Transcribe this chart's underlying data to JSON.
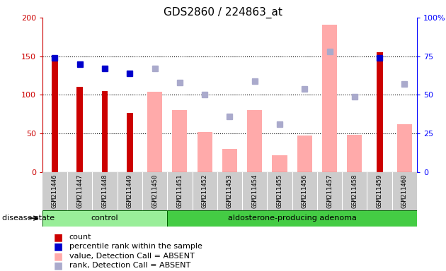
{
  "title": "GDS2860 / 224863_at",
  "samples": [
    "GSM211446",
    "GSM211447",
    "GSM211448",
    "GSM211449",
    "GSM211450",
    "GSM211451",
    "GSM211452",
    "GSM211453",
    "GSM211454",
    "GSM211455",
    "GSM211456",
    "GSM211457",
    "GSM211458",
    "GSM211459",
    "GSM211460"
  ],
  "count_values": [
    148,
    110,
    105,
    77,
    null,
    null,
    null,
    null,
    null,
    null,
    null,
    null,
    null,
    155,
    null
  ],
  "percentile_values": [
    74,
    70,
    67,
    64,
    null,
    null,
    null,
    null,
    null,
    null,
    null,
    null,
    null,
    74,
    null
  ],
  "absent_value_values": [
    null,
    null,
    null,
    null,
    104,
    80,
    52,
    30,
    80,
    22,
    47,
    191,
    48,
    null,
    62
  ],
  "absent_rank_values": [
    null,
    null,
    null,
    null,
    67,
    58,
    50,
    36,
    59,
    31,
    54,
    78,
    49,
    null,
    57
  ],
  "ylim_left": [
    0,
    200
  ],
  "ylim_right": [
    0,
    100
  ],
  "yticks_left": [
    0,
    50,
    100,
    150,
    200
  ],
  "yticks_right": [
    0,
    25,
    50,
    75,
    100
  ],
  "ytick_labels_right": [
    "0",
    "25",
    "50",
    "75",
    "100%"
  ],
  "control_count": 5,
  "adenoma_count": 10,
  "total_count": 15,
  "control_label": "control",
  "adenoma_label": "aldosterone-producing adenoma",
  "disease_state_label": "disease state",
  "count_color": "#cc0000",
  "percentile_color": "#0000cc",
  "absent_value_color": "#ffaaaa",
  "absent_rank_color": "#aaaacc",
  "tick_bg": "#cccccc",
  "control_bg": "#99ee99",
  "adenoma_bg": "#44cc44",
  "legend_items": [
    "count",
    "percentile rank within the sample",
    "value, Detection Call = ABSENT",
    "rank, Detection Call = ABSENT"
  ]
}
